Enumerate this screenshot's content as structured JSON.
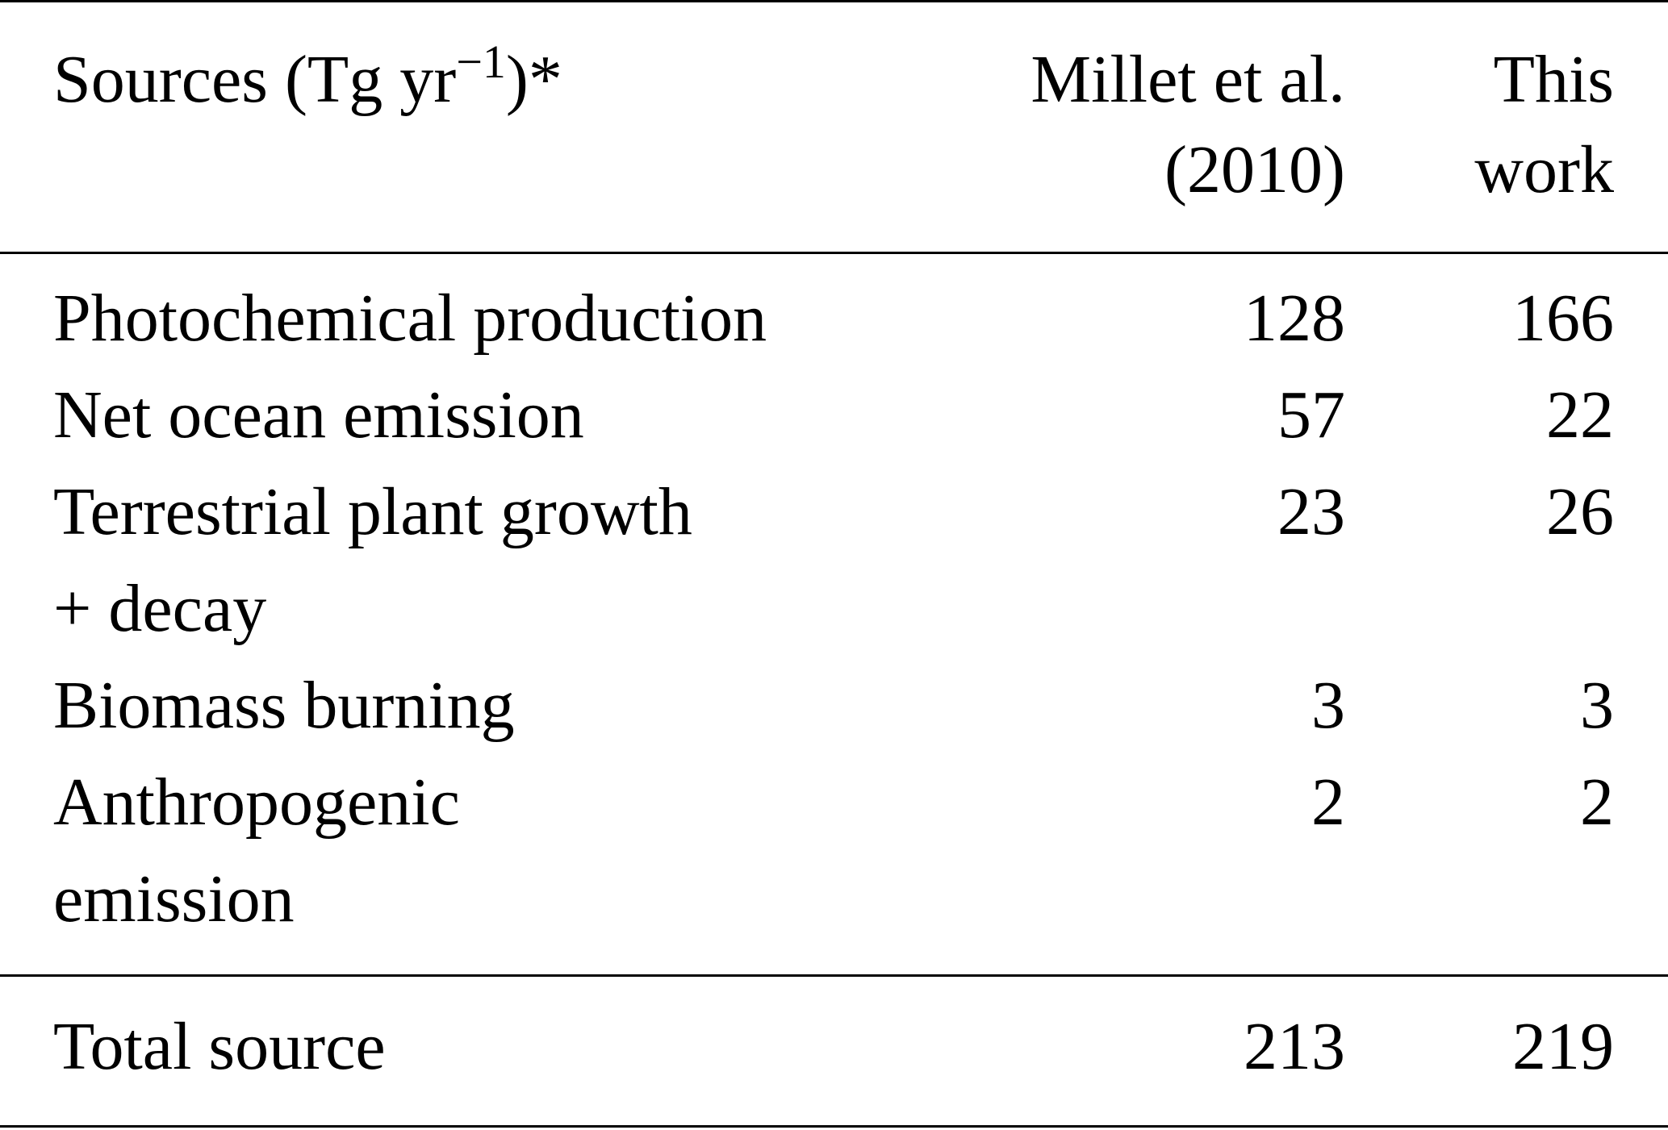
{
  "table": {
    "header": {
      "source": {
        "text": "Sources (Tg yr",
        "superscript": "−1",
        "suffix": ")*"
      },
      "columns": [
        [
          "Millet et al.",
          "(2010)"
        ],
        [
          "This",
          "work"
        ]
      ]
    },
    "rows": [
      {
        "label": [
          "Photochemical production"
        ],
        "values": [
          128,
          166
        ]
      },
      {
        "label": [
          "Net ocean emission"
        ],
        "values": [
          57,
          22
        ]
      },
      {
        "label": [
          "Terrestrial plant growth",
          "+ decay"
        ],
        "values": [
          23,
          26
        ]
      },
      {
        "label": [
          "Biomass burning"
        ],
        "values": [
          3,
          3
        ]
      },
      {
        "label": [
          "Anthropogenic",
          "emission"
        ],
        "values": [
          2,
          2
        ]
      }
    ],
    "total": {
      "label": "Total source",
      "values": [
        213,
        219
      ]
    }
  }
}
